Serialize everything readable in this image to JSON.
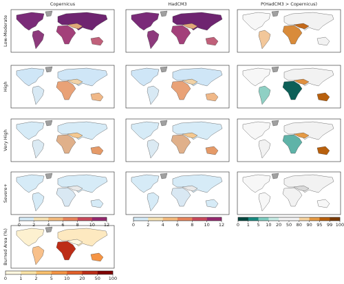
{
  "columns": [
    "Copernicus",
    "HadCM3",
    "P(HadCM3 > Copernicus)"
  ],
  "rows": [
    "Low-Moderate",
    "High",
    "Very High",
    "Severe+",
    "Burned Area (%)"
  ],
  "colorbars": [
    {
      "ticks": [
        0,
        2,
        4,
        6,
        8,
        10,
        12
      ],
      "colors": [
        "#d6ebf7",
        "#f7e3b5",
        "#f4bb7e",
        "#e8855c",
        "#c94a5c",
        "#95296f"
      ]
    },
    {
      "ticks": [
        0,
        2,
        4,
        6,
        8,
        10,
        12
      ],
      "colors": [
        "#d6ebf7",
        "#f7e3b5",
        "#f4bb7e",
        "#e8855c",
        "#c94a5c",
        "#95296f"
      ]
    },
    {
      "ticks": [
        0,
        1,
        5,
        10,
        20,
        50,
        80,
        90,
        95,
        99,
        100
      ],
      "colors": [
        "#01463f",
        "#1a8a80",
        "#7fcdc1",
        "#c8ebe5",
        "#f2f2f2",
        "#f2f2f2",
        "#f6d3a0",
        "#e59a45",
        "#b8600d",
        "#7a3b04"
      ]
    },
    {
      "ticks": [
        0,
        1,
        2,
        5,
        10,
        20,
        50,
        100
      ],
      "colors": [
        "#fff7e0",
        "#fde4a8",
        "#fbc16e",
        "#f59444",
        "#e2602a",
        "#bd2d17",
        "#800000"
      ]
    }
  ]
}
